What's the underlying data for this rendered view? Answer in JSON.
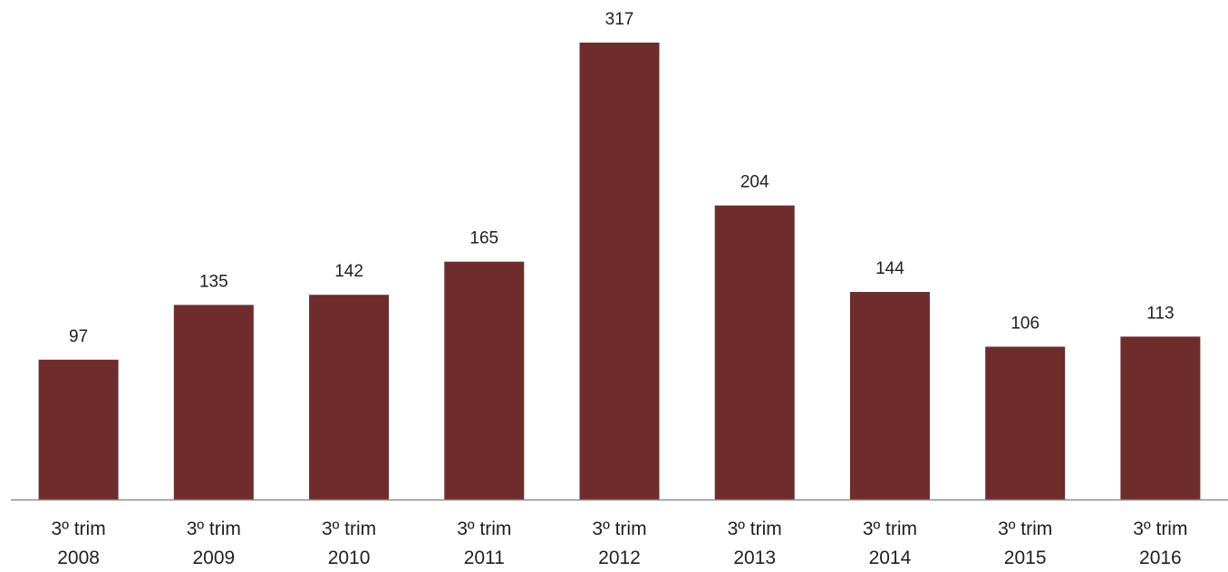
{
  "chart_data": {
    "type": "bar",
    "title": "",
    "xlabel": "",
    "ylabel": "",
    "categories": [
      [
        "3º trim",
        "2008"
      ],
      [
        "3º trim",
        "2009"
      ],
      [
        "3º trim",
        "2010"
      ],
      [
        "3º trim",
        "2011"
      ],
      [
        "3º trim",
        "2012"
      ],
      [
        "3º trim",
        "2013"
      ],
      [
        "3º trim",
        "2014"
      ],
      [
        "3º trim",
        "2015"
      ],
      [
        "3º trim",
        "2016"
      ]
    ],
    "values": [
      97,
      135,
      142,
      165,
      317,
      204,
      144,
      106,
      113
    ],
    "data_labels": [
      "97",
      "135",
      "142",
      "165",
      "317",
      "204",
      "144",
      "106",
      "113"
    ],
    "ylim": [
      0,
      317
    ],
    "grid": false,
    "legend": "none",
    "bar_color": "#6e2c2c",
    "axis_color": "#8c8c8c"
  }
}
